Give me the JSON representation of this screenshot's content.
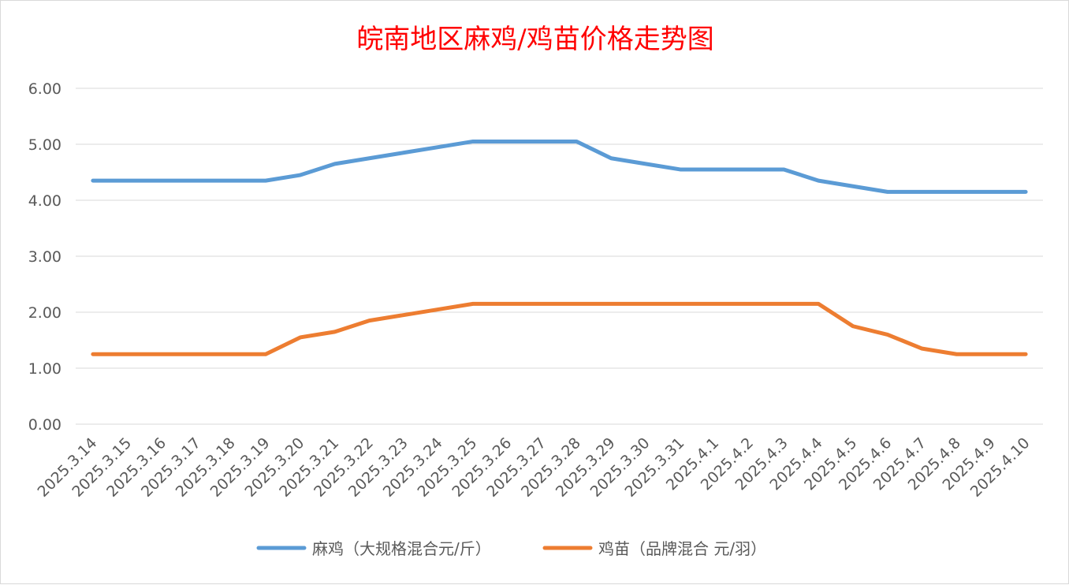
{
  "chart_data": {
    "type": "line",
    "title": "皖南地区麻鸡/鸡苗价格走势图",
    "xlabel": "",
    "ylabel": "",
    "ylim": [
      0,
      6
    ],
    "yticks": [
      "0.00",
      "1.00",
      "2.00",
      "3.00",
      "4.00",
      "5.00",
      "6.00"
    ],
    "grid": true,
    "legend_position": "bottom",
    "categories": [
      "2025.3.14",
      "2025.3.15",
      "2025.3.16",
      "2025.3.17",
      "2025.3.18",
      "2025.3.19",
      "2025.3.20",
      "2025.3.21",
      "2025.3.22",
      "2025.3.23",
      "2025.3.24",
      "2025.3.25",
      "2025.3.26",
      "2025.3.27",
      "2025.3.28",
      "2025.3.29",
      "2025.3.30",
      "2025.3.31",
      "2025.4.1",
      "2025.4.2",
      "2025.4.3",
      "2025.4.4",
      "2025.4.5",
      "2025.4.6",
      "2025.4.7",
      "2025.4.8",
      "2025.4.9",
      "2025.4.10"
    ],
    "series": [
      {
        "name": "麻鸡（大规格混合元/斤）",
        "color": "#5b9bd5",
        "values": [
          4.35,
          4.35,
          4.35,
          4.35,
          4.35,
          4.35,
          4.45,
          4.65,
          4.75,
          4.85,
          4.95,
          5.05,
          5.05,
          5.05,
          5.05,
          4.75,
          4.65,
          4.55,
          4.55,
          4.55,
          4.55,
          4.35,
          4.25,
          4.15,
          4.15,
          4.15,
          4.15,
          4.15
        ]
      },
      {
        "name": "鸡苗（品牌混合 元/羽）",
        "color": "#ed7d31",
        "values": [
          1.25,
          1.25,
          1.25,
          1.25,
          1.25,
          1.25,
          1.55,
          1.65,
          1.85,
          1.95,
          2.05,
          2.15,
          2.15,
          2.15,
          2.15,
          2.15,
          2.15,
          2.15,
          2.15,
          2.15,
          2.15,
          2.15,
          1.75,
          1.6,
          1.35,
          1.25,
          1.25,
          1.25
        ]
      }
    ]
  }
}
